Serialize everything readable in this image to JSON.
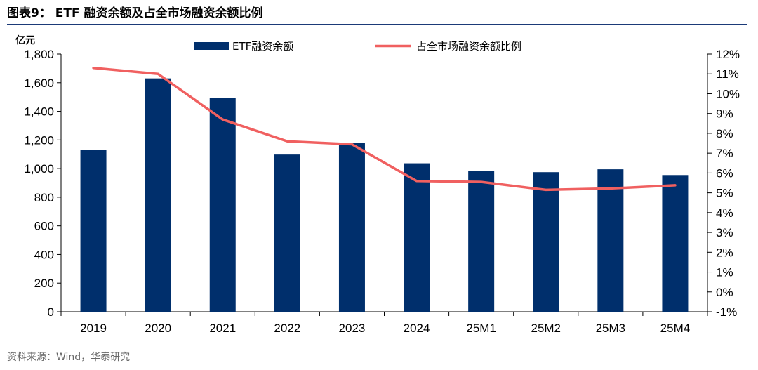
{
  "header": {
    "title": "图表9：  ETF 融资余额及占全市场融资余额比例"
  },
  "footer": {
    "source": "资料来源：Wind，华泰研究"
  },
  "colors": {
    "bar": "#002f6c",
    "line": "#f06060",
    "rule": "#1b3a78"
  },
  "chart_data": {
    "type": "bar",
    "left_unit": "亿元",
    "categories": [
      "2019",
      "2020",
      "2021",
      "2022",
      "2023",
      "2024",
      "25M1",
      "25M2",
      "25M3",
      "25M4"
    ],
    "series": [
      {
        "name": "ETF融资余额",
        "type": "bar",
        "axis": "left",
        "values": [
          1130,
          1630,
          1495,
          1098,
          1180,
          1037,
          985,
          975,
          995,
          955
        ]
      },
      {
        "name": "占全市场融资余额比例",
        "type": "line",
        "axis": "right",
        "values": [
          11.3,
          11.0,
          8.7,
          7.6,
          7.45,
          5.6,
          5.55,
          5.15,
          5.22,
          5.38
        ]
      }
    ],
    "ylim_left": [
      0,
      1800
    ],
    "yticks_left": [
      "0",
      "200",
      "400",
      "600",
      "800",
      "1,000",
      "1,200",
      "1,400",
      "1,600",
      "1,800"
    ],
    "ylim_right": [
      -1,
      12
    ],
    "yticks_right": [
      "-1%",
      "0%",
      "1%",
      "2%",
      "3%",
      "4%",
      "5%",
      "6%",
      "7%",
      "8%",
      "9%",
      "10%",
      "11%",
      "12%"
    ],
    "legend_position": "top",
    "grid": false
  }
}
